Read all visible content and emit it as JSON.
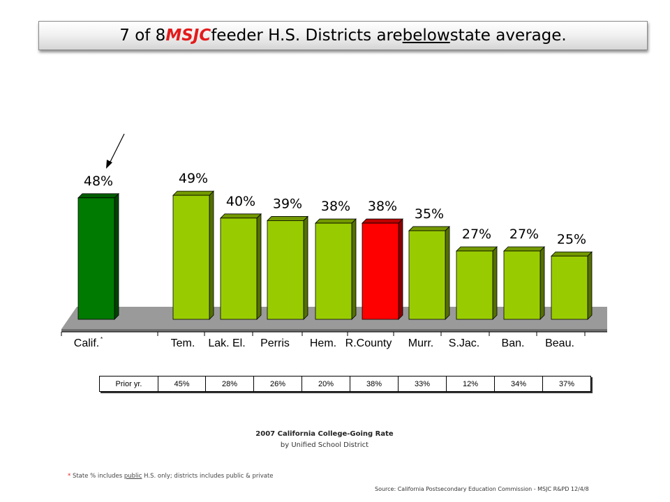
{
  "title": {
    "part1": "7 of 8 ",
    "highlight": "MSJC",
    "part2": " feeder H.S. Districts are ",
    "underlined": "below",
    "part3": " state average."
  },
  "chart_data": {
    "type": "bar",
    "title": "2007 California College-Going Rate",
    "subtitle": "by Unified School District",
    "categories": [
      "Calif.",
      "Tem.",
      "Lak. El.",
      "Perris",
      "Hem.",
      "R.County",
      "Murr.",
      "S.Jac.",
      "Ban.",
      "Beau."
    ],
    "values": [
      48,
      49,
      40,
      39,
      38,
      38,
      35,
      27,
      27,
      25
    ],
    "value_labels": [
      "48%",
      "49%",
      "40%",
      "39%",
      "38%",
      "38%",
      "35%",
      "27%",
      "27%",
      "25%"
    ],
    "categories_marker": [
      "*",
      "",
      "",
      "",
      "",
      "",
      "",
      "",
      "",
      ""
    ],
    "colors": [
      "#007a00",
      "#99cc00",
      "#99cc00",
      "#99cc00",
      "#99cc00",
      "#ff0000",
      "#99cc00",
      "#99cc00",
      "#99cc00",
      "#99cc00"
    ],
    "ylim": [
      0,
      60
    ],
    "grid": false,
    "legend": "none",
    "annotation": "arrow pointing to Calif. value label"
  },
  "prior_year": {
    "label": "Prior yr.",
    "values": [
      "45%",
      "28%",
      "26%",
      "20%",
      "38%",
      "33%",
      "12%",
      "34%",
      "37%"
    ]
  },
  "caption": {
    "title": "2007 California College-Going Rate",
    "subtitle": "by Unified School District"
  },
  "footnote": {
    "star": "*",
    "before": " State % includes ",
    "underlined": "public",
    "after": " H.S. only; districts includes public & private"
  },
  "source": "Source: California Postsecondary Education Commission - MSJC R&PD 12/4/8"
}
